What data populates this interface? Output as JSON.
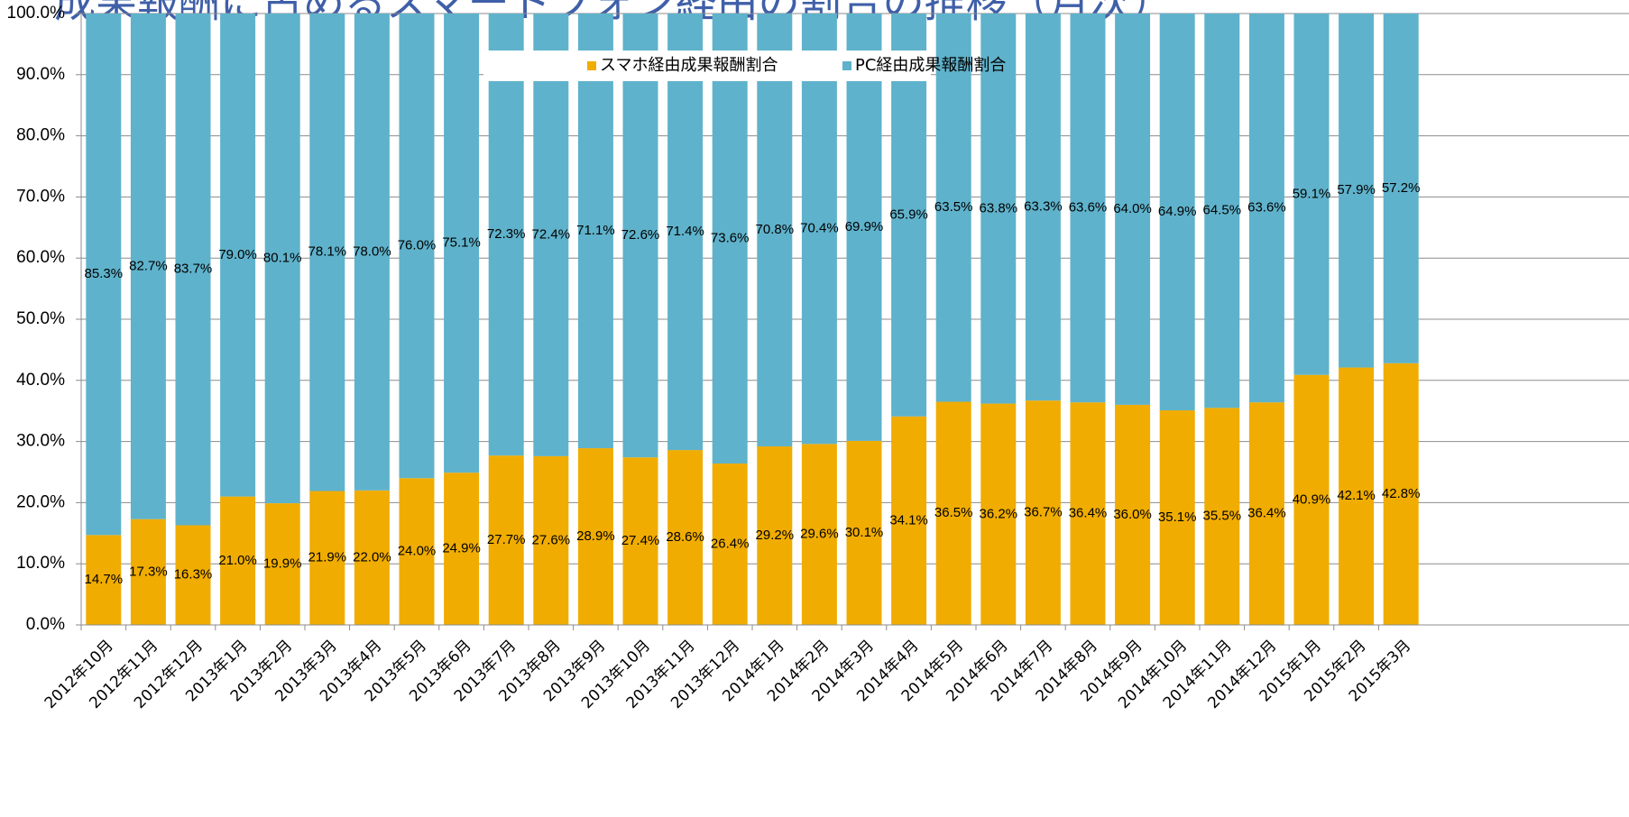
{
  "chart_data": {
    "type": "bar",
    "stacked": true,
    "title": "成果報酬に占めるスマートフォン経由の割合の推移（月次）",
    "xlabel": "",
    "ylabel": "",
    "ylim": [
      0,
      100
    ],
    "y_ticks": [
      "0.0%",
      "10.0%",
      "20.0%",
      "30.0%",
      "40.0%",
      "50.0%",
      "60.0%",
      "70.0%",
      "80.0%",
      "90.0%",
      "100.0%"
    ],
    "grid": true,
    "legend_position": "top-center",
    "categories": [
      "2012年10月",
      "2012年11月",
      "2012年12月",
      "2013年1月",
      "2013年2月",
      "2013年3月",
      "2013年4月",
      "2013年5月",
      "2013年6月",
      "2013年7月",
      "2013年8月",
      "2013年9月",
      "2013年10月",
      "2013年11月",
      "2013年12月",
      "2014年1月",
      "2014年2月",
      "2014年3月",
      "2014年4月",
      "2014年5月",
      "2014年6月",
      "2014年7月",
      "2014年8月",
      "2014年9月",
      "2014年10月",
      "2014年11月",
      "2014年12月",
      "2015年1月",
      "2015年2月",
      "2015年3月"
    ],
    "series": [
      {
        "name": "スマホ経由成果報酬割合",
        "color": "#f0ac00",
        "values": [
          14.7,
          17.3,
          16.3,
          21.0,
          19.9,
          21.9,
          22.0,
          24.0,
          24.9,
          27.7,
          27.6,
          28.9,
          27.4,
          28.6,
          26.4,
          29.2,
          29.6,
          30.1,
          34.1,
          36.5,
          36.2,
          36.7,
          36.4,
          36.0,
          35.1,
          35.5,
          36.4,
          40.9,
          42.1,
          42.8
        ],
        "labels": [
          "14.7%",
          "17.3%",
          "16.3%",
          "21.0%",
          "19.9%",
          "21.9%",
          "22.0%",
          "24.0%",
          "24.9%",
          "27.7%",
          "27.6%",
          "28.9%",
          "27.4%",
          "28.6%",
          "26.4%",
          "29.2%",
          "29.6%",
          "30.1%",
          "34.1%",
          "36.5%",
          "36.2%",
          "36.7%",
          "36.4%",
          "36.0%",
          "35.1%",
          "35.5%",
          "36.4%",
          "40.9%",
          "42.1%",
          "42.8%"
        ]
      },
      {
        "name": "PC経由成果報酬割合",
        "color": "#5fb2cb",
        "values": [
          85.3,
          82.7,
          83.7,
          79.0,
          80.1,
          78.1,
          78.0,
          76.0,
          75.1,
          72.3,
          72.4,
          71.1,
          72.6,
          71.4,
          73.6,
          70.8,
          70.4,
          69.9,
          65.9,
          63.5,
          63.8,
          63.3,
          63.6,
          64.0,
          64.9,
          64.5,
          63.6,
          59.1,
          57.9,
          57.2
        ],
        "labels": [
          "85.3%",
          "82.7%",
          "83.7%",
          "79.0%",
          "80.1%",
          "78.1%",
          "78.0%",
          "76.0%",
          "75.1%",
          "72.3%",
          "72.4%",
          "71.1%",
          "72.6%",
          "71.4%",
          "73.6%",
          "70.8%",
          "70.4%",
          "69.9%",
          "65.9%",
          "63.5%",
          "63.8%",
          "63.3%",
          "63.6%",
          "64.0%",
          "64.9%",
          "64.5%",
          "63.6%",
          "59.1%",
          "57.9%",
          "57.2%"
        ]
      }
    ]
  }
}
